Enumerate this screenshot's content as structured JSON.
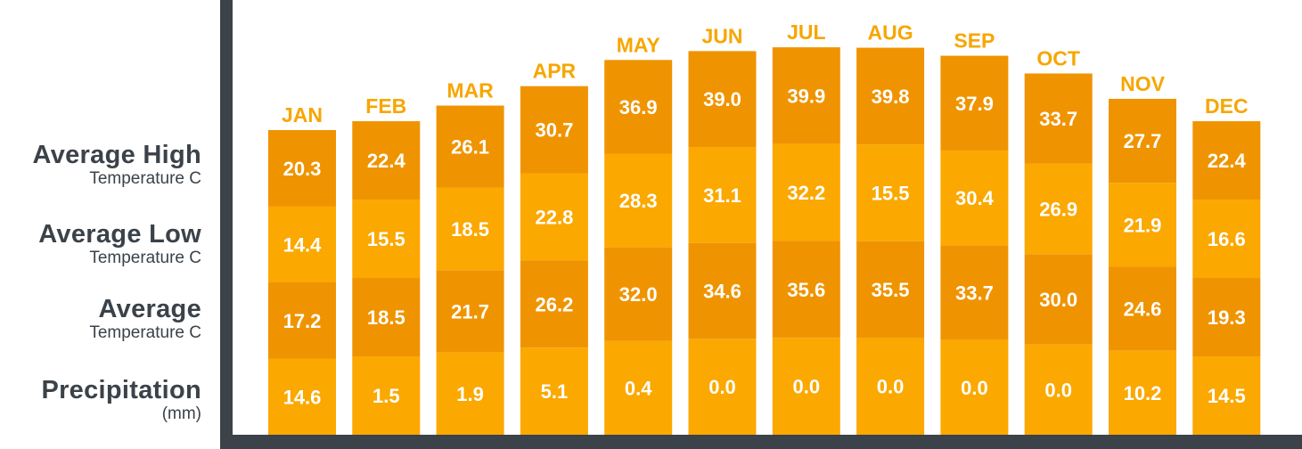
{
  "row_labels": [
    {
      "main": "Average High",
      "sub": "Temperature C"
    },
    {
      "main": "Average Low",
      "sub": "Temperature C"
    },
    {
      "main": "Average",
      "sub": "Temperature C"
    },
    {
      "main": "Precipitation",
      "sub": "(mm)"
    }
  ],
  "colors": {
    "frame": "#3b4249",
    "label": "#3b4249",
    "month": "#f7a600",
    "dark_segment": "#ef9400",
    "light_segment": "#fba800",
    "value_text": "#ffffff"
  },
  "chart_data": {
    "type": "table",
    "categories": [
      "JAN",
      "FEB",
      "MAR",
      "APR",
      "MAY",
      "JUN",
      "JUL",
      "AUG",
      "SEP",
      "OCT",
      "NOV",
      "DEC"
    ],
    "series": [
      {
        "name": "Average High Temperature C",
        "values": [
          "20.3",
          "22.4",
          "26.1",
          "30.7",
          "36.9",
          "39.0",
          "39.9",
          "39.8",
          "37.9",
          "33.7",
          "27.7",
          "22.4"
        ]
      },
      {
        "name": "Average Low Temperature C",
        "values": [
          "14.4",
          "15.5",
          "18.5",
          "22.8",
          "28.3",
          "31.1",
          "32.2",
          "15.5",
          "30.4",
          "26.9",
          "21.9",
          "16.6"
        ]
      },
      {
        "name": "Average Temperature C",
        "values": [
          "17.2",
          "18.5",
          "21.7",
          "26.2",
          "32.0",
          "34.6",
          "35.6",
          "35.5",
          "33.7",
          "30.0",
          "24.6",
          "19.3"
        ]
      },
      {
        "name": "Precipitation (mm)",
        "values": [
          "14.6",
          "1.5",
          "1.9",
          "5.1",
          "0.4",
          "0.0",
          "0.0",
          "0.0",
          "0.0",
          "0.0",
          "10.2",
          "14.5"
        ]
      }
    ]
  }
}
